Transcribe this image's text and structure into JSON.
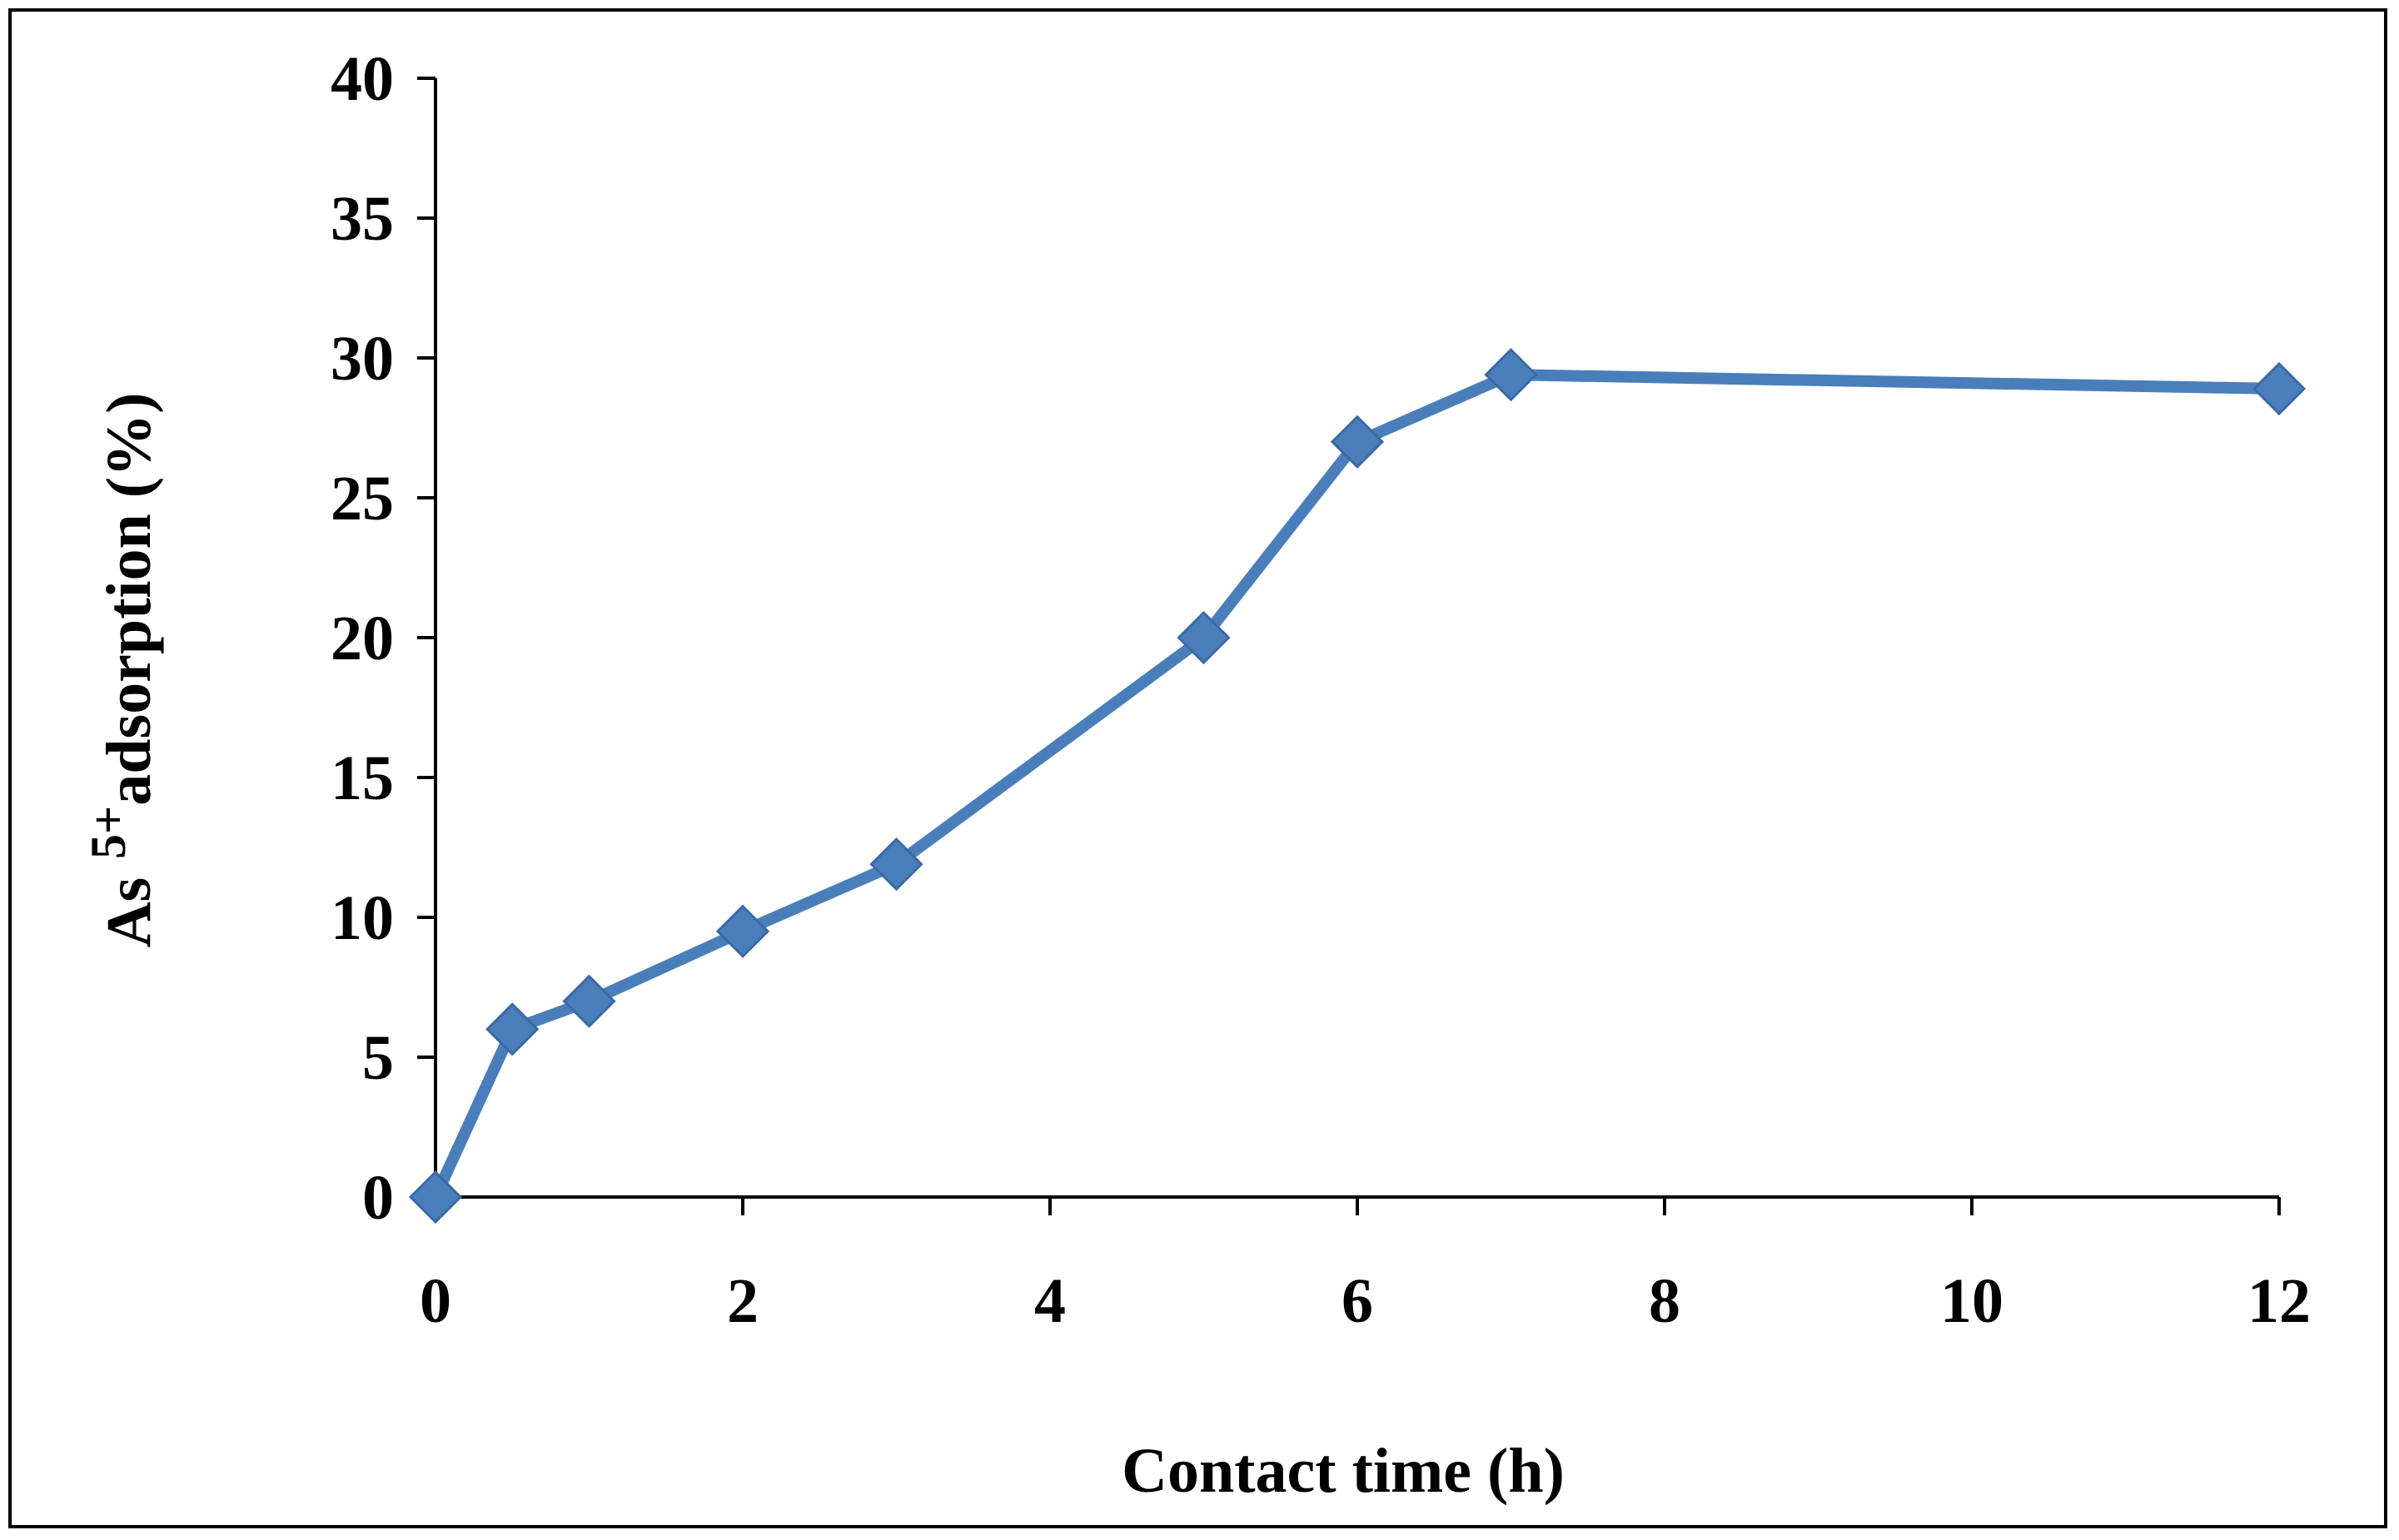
{
  "chart_data": {
    "type": "line",
    "xlabel": "Contact time (h)",
    "ylabel": {
      "prefix": "As",
      "superscript": "5+",
      "suffix": "adsorption (%)"
    },
    "x_ticks": [
      "0",
      "2",
      "4",
      "6",
      "8",
      "10",
      "12"
    ],
    "y_ticks": [
      "0",
      "5",
      "10",
      "15",
      "20",
      "25",
      "30",
      "35",
      "40"
    ],
    "xlim": [
      0,
      12
    ],
    "ylim": [
      0,
      40
    ],
    "grid": false,
    "legend": "none",
    "marker": "diamond",
    "series": [
      {
        "color": "#4a7ebb",
        "points": [
          {
            "x": 0,
            "y": 0
          },
          {
            "x": 0.5,
            "y": 6
          },
          {
            "x": 1,
            "y": 7
          },
          {
            "x": 2,
            "y": 9.5
          },
          {
            "x": 3,
            "y": 11.9
          },
          {
            "x": 5,
            "y": 20
          },
          {
            "x": 6,
            "y": 27
          },
          {
            "x": 7,
            "y": 29.4
          },
          {
            "x": 12,
            "y": 28.9
          }
        ]
      }
    ]
  }
}
